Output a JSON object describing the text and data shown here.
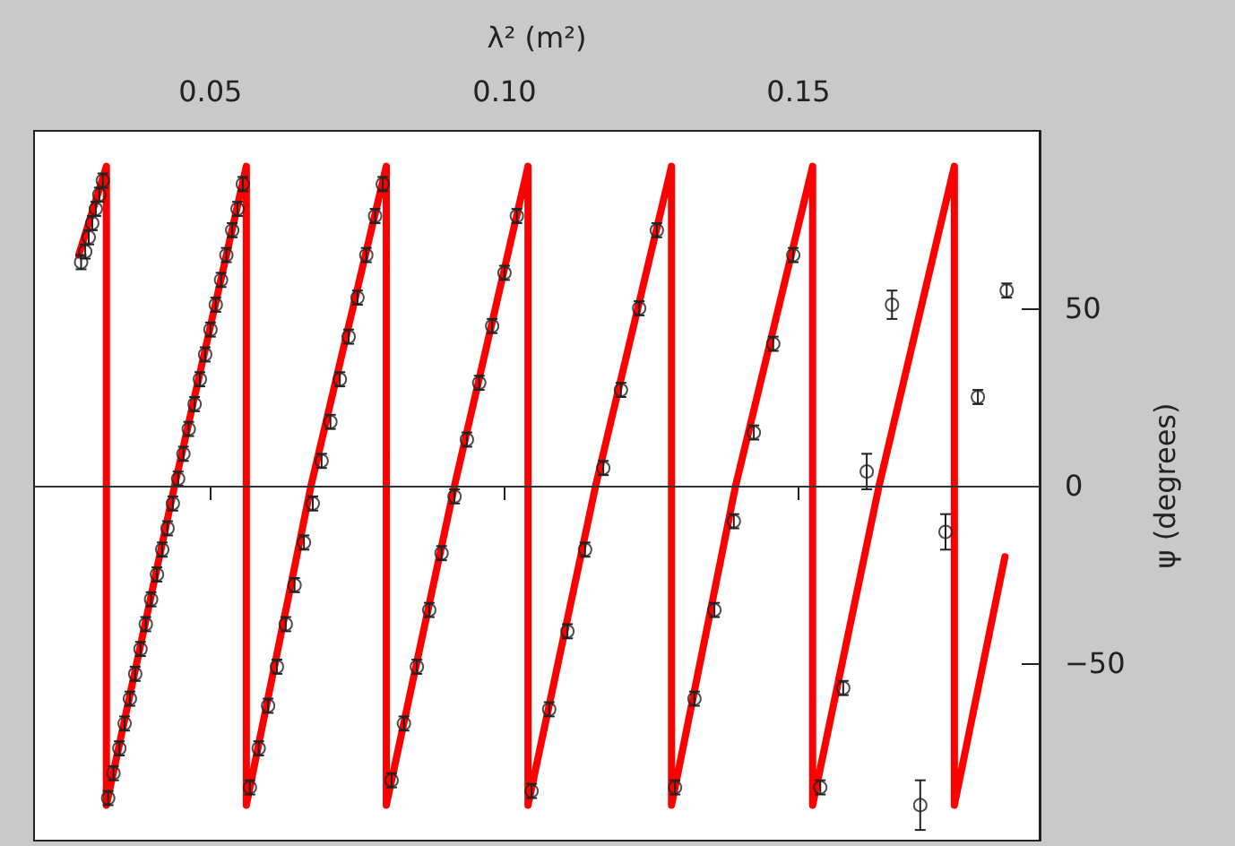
{
  "chart_data": {
    "type": "scatter",
    "xlabel": "λ² (m²)",
    "ylabel": "ψ (degrees)",
    "xlim": [
      0.02,
      0.191
    ],
    "xticks": [
      0.05,
      {
        "value": 0.1,
        "label": "0.10"
      },
      0.15
    ],
    "ylim": [
      -100,
      100
    ],
    "yticks": [
      -50,
      0,
      50
    ],
    "grid": false,
    "legend": false,
    "marker": "circle",
    "ref_lines": [
      {
        "axis": "y",
        "value": 0,
        "color": "#333333"
      }
    ],
    "series": [
      {
        "type": "line",
        "color": "#ff0000",
        "line_style": "solid",
        "marker": "none",
        "x": [
          0.0276,
          0.0323,
          0.0323,
          0.0439,
          0.0561,
          0.0561,
          0.0671,
          0.0799,
          0.0799,
          0.0915,
          0.104,
          0.104,
          0.1155,
          0.1284,
          0.1284,
          0.1393,
          0.1524,
          0.1524,
          0.1637,
          0.1765,
          0.1765,
          0.1851
        ],
        "values": [
          65,
          90,
          -90,
          0,
          90,
          -90,
          0,
          90,
          -90,
          0,
          90,
          -90,
          0,
          90,
          -90,
          0,
          90,
          -90,
          0,
          90,
          -90,
          -20
        ]
      },
      {
        "color": "#222222",
        "x": [
          0.028,
          0.0287,
          0.0293,
          0.0299,
          0.0305,
          0.0311,
          0.0317,
          0.0326,
          0.0335,
          0.0345,
          0.0354,
          0.0363,
          0.0372,
          0.0381,
          0.039,
          0.0399,
          0.0409,
          0.0418,
          0.0427,
          0.0436,
          0.0445,
          0.0454,
          0.0463,
          0.0473,
          0.0482,
          0.0491,
          0.05,
          0.0509,
          0.0518,
          0.0527,
          0.0537,
          0.0546,
          0.0555,
          0.0567,
          0.0582,
          0.0598,
          0.0613,
          0.0628,
          0.0643,
          0.0659,
          0.0674,
          0.0689,
          0.0704,
          0.072,
          0.0735,
          0.075,
          0.0765,
          0.078,
          0.0793,
          0.0808,
          0.0829,
          0.0851,
          0.0872,
          0.0893,
          0.0915,
          0.0936,
          0.0957,
          0.0979,
          0.1,
          0.1021,
          0.1046,
          0.1076,
          0.1107,
          0.1137,
          0.1168,
          0.1198,
          0.1229,
          0.1259,
          0.129,
          0.1323,
          0.1357,
          0.139,
          0.1424,
          0.1457,
          0.1491,
          0.1537,
          0.1576,
          0.1616,
          0.1659,
          0.1707,
          0.175,
          0.1805,
          0.1854
        ],
        "values": [
          63,
          66,
          70,
          74,
          78,
          82,
          86,
          -88,
          -81,
          -74,
          -67,
          -60,
          -53,
          -46,
          -39,
          -32,
          -25,
          -18,
          -12,
          -5,
          2,
          9,
          16,
          23,
          30,
          37,
          44,
          51,
          58,
          65,
          72,
          78,
          85,
          -85,
          -74,
          -62,
          -51,
          -39,
          -28,
          -16,
          -5,
          7,
          18,
          30,
          42,
          53,
          65,
          76,
          85,
          -83,
          -67,
          -51,
          -35,
          -19,
          -3,
          13,
          29,
          45,
          60,
          76,
          -86,
          -63,
          -41,
          -18,
          5,
          27,
          50,
          72,
          -85,
          -60,
          -35,
          -10,
          15,
          40,
          65,
          -85,
          -57,
          4,
          51,
          -90,
          -13,
          25,
          55
        ],
        "errors": [
          2,
          2,
          2,
          2,
          2,
          2,
          2,
          2,
          2,
          2,
          2,
          2,
          2,
          2,
          2,
          2,
          2,
          2,
          2,
          2,
          2,
          2,
          2,
          2,
          2,
          2,
          2,
          2,
          2,
          2,
          2,
          2,
          2,
          2,
          2,
          2,
          2,
          2,
          2,
          2,
          2,
          2,
          2,
          2,
          2,
          2,
          2,
          2,
          2,
          2,
          2,
          2,
          2,
          2,
          2,
          2,
          2,
          2,
          2,
          2,
          2,
          2,
          2,
          2,
          2,
          2,
          2,
          2,
          2,
          2,
          2,
          2,
          2,
          2,
          2,
          2,
          2,
          5,
          4,
          7,
          5,
          2,
          2
        ]
      }
    ]
  }
}
